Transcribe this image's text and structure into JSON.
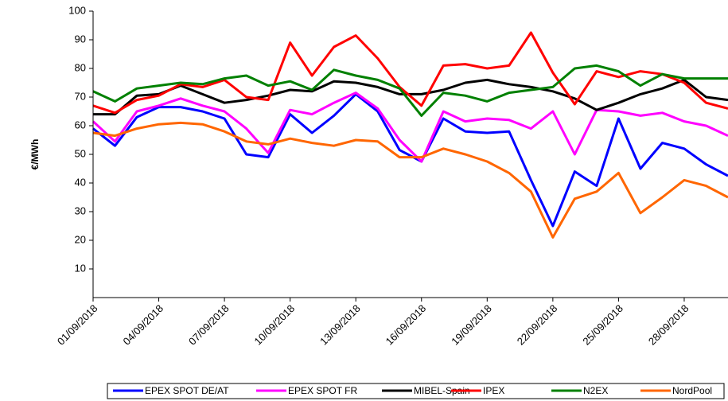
{
  "chart_data": {
    "type": "line",
    "y_label": "€/MWh",
    "categories": [
      "01/09/2018",
      null,
      null,
      "04/09/2018",
      null,
      null,
      "07/09/2018",
      null,
      null,
      "10/09/2018",
      null,
      null,
      "13/09/2018",
      null,
      null,
      "16/09/2018",
      null,
      null,
      "19/09/2018",
      null,
      null,
      "22/09/2018",
      null,
      null,
      "25/09/2018",
      null,
      null,
      "28/09/2018",
      null,
      null
    ],
    "ylim": [
      0,
      100
    ],
    "yticks": [
      10,
      20,
      30,
      40,
      50,
      60,
      70,
      80,
      90,
      100
    ],
    "series": [
      {
        "name": "EPEX SPOT DE/AT",
        "color": "#0000ff",
        "values": [
          59,
          53,
          63,
          66.5,
          66.5,
          65,
          62.5,
          50,
          49,
          64,
          57.5,
          63.5,
          71,
          65,
          51.5,
          47.5,
          62.5,
          58,
          57.5,
          58,
          41,
          25,
          44,
          39,
          62.5,
          45,
          54,
          52,
          46.5,
          42.5
        ]
      },
      {
        "name": "EPEX SPOT FR",
        "color": "#ff00ff",
        "values": [
          61.5,
          54.5,
          65,
          67,
          69.5,
          67,
          65,
          59,
          50.5,
          65.5,
          64,
          68,
          71.5,
          66,
          55,
          47.5,
          65,
          61.5,
          62.5,
          62,
          59,
          65,
          50,
          65.5,
          65,
          63.5,
          64.5,
          61.5,
          60,
          56.5
        ]
      },
      {
        "name": "MIBEL-Spain",
        "color": "#000000",
        "values": [
          64,
          64,
          70.5,
          71,
          74,
          71,
          68,
          69,
          70.5,
          72.5,
          72,
          75.5,
          75,
          73.5,
          71,
          71,
          72.5,
          75,
          76,
          74.5,
          73.5,
          72,
          69.5,
          65.5,
          68,
          71,
          73,
          76,
          70,
          69
        ]
      },
      {
        "name": "IPEX",
        "color": "#ff0000",
        "values": [
          67,
          64.5,
          69,
          70.5,
          74.5,
          73.5,
          76,
          70,
          69,
          89,
          77.5,
          87.5,
          91.5,
          83.5,
          73.5,
          67,
          81,
          81.5,
          80,
          81,
          92.5,
          78.5,
          67.5,
          79,
          77,
          79,
          78,
          75,
          68,
          66
        ]
      },
      {
        "name": "N2EX",
        "color": "#008000",
        "values": [
          72,
          68.5,
          73,
          74,
          75,
          74.5,
          76.5,
          77.5,
          74,
          75.5,
          72.5,
          79.5,
          77.5,
          76,
          73,
          63.5,
          71.5,
          70.5,
          68.5,
          71.5,
          72.5,
          73.5,
          80,
          81,
          79,
          74,
          78,
          76.5,
          76.5,
          76.5
        ]
      },
      {
        "name": "NordPool",
        "color": "#ff6600",
        "values": [
          57.5,
          56.5,
          59,
          60.5,
          61,
          60.5,
          58,
          54.5,
          53.5,
          55.5,
          54,
          53,
          55,
          54.5,
          49,
          49,
          52,
          50,
          47.5,
          43.5,
          37,
          21,
          34.5,
          37,
          43.5,
          29.5,
          35,
          41,
          39,
          35
        ]
      }
    ]
  }
}
